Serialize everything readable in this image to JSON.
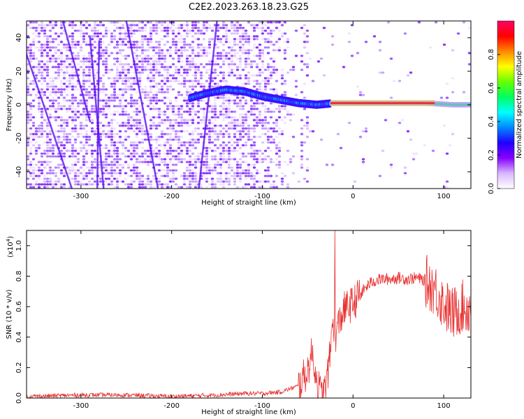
{
  "title": "C2E2.2023.263.18.23.G25",
  "chart_data": [
    {
      "type": "heatmap",
      "title": "C2E2.2023.263.18.23.G25",
      "xlabel": "Height of straight line (km)",
      "ylabel": "Frequency (Hz)",
      "xlim": [
        -360,
        130
      ],
      "ylim": [
        -50,
        50
      ],
      "xticks": [
        -300,
        -200,
        -100,
        0,
        100
      ],
      "yticks": [
        -40,
        -20,
        0,
        20,
        40
      ],
      "colorbar": {
        "label": "Normalized spectral amplitude",
        "range": [
          0,
          1
        ],
        "ticks": [
          "0.0",
          "0.2",
          "0.4",
          "0.6",
          "0.8"
        ],
        "colors": [
          "#ffffff",
          "#d8b8ff",
          "#8800ff",
          "#2000ff",
          "#0088ff",
          "#00ffff",
          "#00ff60",
          "#66ff00",
          "#ffff00",
          "#ff8800",
          "#ff0000",
          "#ff0066"
        ]
      },
      "signal_ridge": {
        "x": [
          -180,
          -160,
          -140,
          -120,
          -100,
          -80,
          -60,
          -40,
          -20,
          0,
          40,
          80,
          110,
          130
        ],
        "y": [
          4,
          7,
          9,
          8,
          5,
          3,
          1,
          0,
          1,
          1,
          1,
          1,
          0,
          0
        ]
      }
    },
    {
      "type": "line",
      "xlabel": "Height of straight line (km)",
      "ylabel": "SNR (10 * v/v)",
      "scale_note": "(x10",
      "scale_exp": "4",
      "scale_close": ")",
      "xlim": [
        -360,
        130
      ],
      "ylim": [
        0,
        1.1
      ],
      "xticks": [
        -300,
        -200,
        -100,
        0,
        100
      ],
      "yticks": [
        "0.0",
        "0.2",
        "0.4",
        "0.6",
        "0.8",
        "1.0"
      ],
      "series": [
        {
          "color": "#e83030",
          "x": [
            -360,
            -300,
            -250,
            -200,
            -150,
            -120,
            -100,
            -80,
            -60,
            -50,
            -45,
            -40,
            -35,
            -30,
            -25,
            -22,
            -20,
            -15,
            -10,
            0,
            10,
            20,
            30,
            40,
            50,
            60,
            70,
            80,
            90,
            100,
            110,
            120,
            130
          ],
          "y": [
            0.01,
            0.02,
            0.02,
            0.01,
            0.02,
            0.03,
            0.03,
            0.04,
            0.08,
            0.18,
            0.3,
            0.12,
            0.02,
            0.06,
            0.3,
            0.55,
            0.4,
            0.5,
            0.58,
            0.62,
            0.7,
            0.76,
            0.78,
            0.78,
            0.79,
            0.78,
            0.79,
            0.77,
            0.72,
            0.62,
            0.55,
            0.6,
            0.58
          ]
        }
      ]
    }
  ]
}
